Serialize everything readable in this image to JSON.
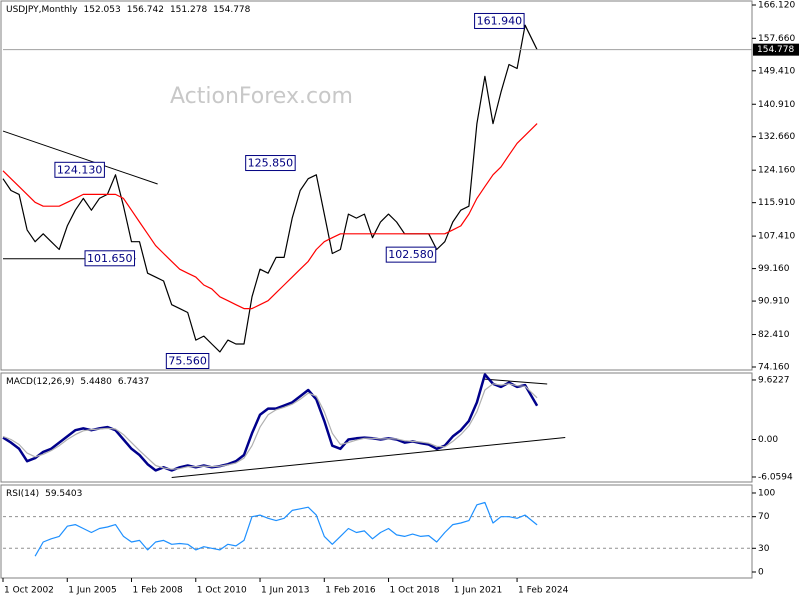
{
  "chart_data": [
    {
      "type": "line",
      "title": "USDJPY,Monthly",
      "ohlc": [
        152.053,
        156.742,
        151.278,
        154.778
      ],
      "watermark": "ActionForex.com",
      "xlim": [
        0,
        373
      ],
      "ylim": [
        73.4,
        167.14
      ],
      "yticks": [
        {
          "value": 166.12,
          "label": "166.120"
        },
        {
          "value": 157.66,
          "label": "157.660"
        },
        {
          "value": 149.41,
          "label": "149.410"
        },
        {
          "value": 140.91,
          "label": "140.910"
        },
        {
          "value": 132.66,
          "label": "132.660"
        },
        {
          "value": 124.16,
          "label": "124.160"
        },
        {
          "value": 115.91,
          "label": "115.910"
        },
        {
          "value": 107.41,
          "label": "107.410"
        },
        {
          "value": 99.16,
          "label": "99.160"
        },
        {
          "value": 90.91,
          "label": "90.910"
        },
        {
          "value": 82.41,
          "label": "82.410"
        },
        {
          "value": 74.16,
          "label": "74.160"
        }
      ],
      "x": [
        0,
        4,
        8,
        12,
        16,
        20,
        24,
        28,
        32,
        36,
        40,
        44,
        48,
        52,
        56,
        60,
        64,
        68,
        72,
        76,
        80,
        84,
        88,
        92,
        96,
        100,
        104,
        108,
        112,
        116,
        120,
        124,
        128,
        132,
        136,
        140,
        144,
        148,
        152,
        156,
        160,
        164,
        168,
        172,
        176,
        180,
        184,
        188,
        192,
        196,
        200,
        204,
        208,
        212,
        216,
        220,
        224,
        228,
        232,
        236,
        240,
        244,
        248,
        252,
        256,
        260,
        266
      ],
      "series": [
        {
          "color": "#000000",
          "values": [
            122,
            119,
            118,
            109,
            106,
            108,
            106,
            104,
            110,
            114,
            117,
            114,
            117,
            118,
            123,
            115,
            106,
            106,
            98,
            97,
            96,
            90,
            89,
            88,
            81,
            82,
            80,
            78,
            81,
            80,
            80,
            92,
            99,
            98,
            102,
            102,
            112,
            119,
            122,
            123,
            113,
            103,
            104,
            113,
            112,
            113,
            107,
            111,
            113,
            111,
            108,
            108,
            108,
            108,
            104,
            106,
            111,
            114,
            115,
            136,
            148,
            136,
            144,
            151,
            150,
            161,
            154.778
          ]
        },
        {
          "color": "#ff0000",
          "values": [
            124,
            122,
            120,
            118,
            116,
            115,
            115,
            115,
            116,
            117,
            118,
            118,
            118,
            118,
            118,
            117,
            114,
            111,
            108,
            105,
            103,
            101,
            99,
            98,
            97,
            95,
            94,
            92,
            91,
            90,
            89,
            89,
            90,
            91,
            93,
            95,
            97,
            99,
            101,
            104,
            106,
            107,
            108,
            108,
            108,
            108,
            108,
            108,
            108,
            108,
            108,
            108,
            108,
            108,
            108,
            108,
            109,
            110,
            113,
            117,
            120,
            123,
            125,
            128,
            131,
            133,
            136
          ]
        }
      ],
      "annotations": [
        {
          "x": 260,
          "value": 161.94,
          "label": "161.940"
        },
        {
          "x": 51,
          "value": 124.13,
          "label": "124.130"
        },
        {
          "x": 146,
          "value": 125.85,
          "label": "125.850"
        },
        {
          "x": 66,
          "value": 101.65,
          "label": "101.650"
        },
        {
          "x": 216,
          "value": 102.58,
          "label": "102.580"
        },
        {
          "x": 103,
          "value": 75.56,
          "label": "75.560"
        }
      ],
      "trendlines": [
        {
          "x": [
            0,
            77
          ],
          "y": [
            134.1,
            120.65
          ]
        },
        {
          "x": [
            0,
            66
          ],
          "y": [
            101.65,
            101.65
          ]
        }
      ]
    },
    {
      "type": "line",
      "title": "MACD(12,26,9)",
      "readout": [
        {
          "value": 5.448,
          "label": "5.4480"
        },
        6.7437
      ],
      "xlim": [
        0,
        373
      ],
      "ylim": [
        -6.87,
        10.75
      ],
      "yticks": [
        9.6227,
        {
          "value": 0,
          "label": "0.00"
        },
        -6.0594
      ],
      "x": [
        0,
        4,
        8,
        12,
        16,
        20,
        24,
        28,
        32,
        36,
        40,
        44,
        48,
        52,
        56,
        60,
        64,
        68,
        72,
        76,
        80,
        84,
        88,
        92,
        96,
        100,
        104,
        108,
        112,
        116,
        120,
        124,
        128,
        132,
        136,
        140,
        144,
        148,
        152,
        156,
        160,
        164,
        168,
        172,
        176,
        180,
        184,
        188,
        192,
        196,
        200,
        204,
        208,
        212,
        216,
        220,
        224,
        228,
        232,
        236,
        240,
        244,
        248,
        252,
        256,
        260,
        266
      ],
      "series": [
        {
          "color": "#00008b",
          "values": [
            0.3,
            -0.5,
            -1.5,
            -3.5,
            -3,
            -2,
            -1.5,
            -0.5,
            0.5,
            1.5,
            1.8,
            1.5,
            1.8,
            2,
            1.5,
            0,
            -1.5,
            -2.5,
            -4,
            -5,
            -4.5,
            -5,
            -4.5,
            -4.2,
            -4.5,
            -4.2,
            -4.5,
            -4.3,
            -4,
            -3.5,
            -2.5,
            1,
            4,
            5,
            5,
            5.5,
            6,
            7,
            8,
            6.5,
            3,
            -1,
            -1.5,
            0,
            0.2,
            0.3,
            0.2,
            0,
            0.2,
            0,
            -0.5,
            -0.3,
            -0.6,
            -0.8,
            -1.5,
            -1,
            0.5,
            1.5,
            3,
            6,
            10.5,
            9,
            8.5,
            9.2,
            8.5,
            8.8,
            5.448
          ]
        },
        {
          "color": "#b0b0b0",
          "values": [
            0.5,
            0,
            -0.8,
            -2.2,
            -2.8,
            -2.4,
            -1.8,
            -1,
            0,
            0.8,
            1.4,
            1.6,
            1.7,
            1.8,
            1.7,
            0.8,
            -0.5,
            -1.8,
            -3,
            -4.2,
            -4.6,
            -4.8,
            -4.7,
            -4.4,
            -4.4,
            -4.3,
            -4.4,
            -4.3,
            -4.1,
            -3.8,
            -3,
            -1,
            2,
            4,
            4.8,
            5.2,
            5.7,
            6.5,
            7.5,
            7,
            4.5,
            1,
            -0.8,
            -0.5,
            -0.1,
            0.2,
            0.2,
            0.1,
            0.1,
            0.1,
            -0.2,
            -0.3,
            -0.4,
            -0.6,
            -1.1,
            -1.2,
            -0.3,
            0.8,
            2.2,
            4.5,
            8,
            9,
            8.8,
            9,
            8.7,
            8.6,
            6.7437
          ]
        }
      ],
      "trendlines": [
        {
          "x": [
            84,
            280
          ],
          "y": [
            -6.14,
            0.32
          ]
        },
        {
          "x": [
            239,
            271
          ],
          "y": [
            9.78,
            8.97
          ]
        }
      ]
    },
    {
      "type": "line",
      "title": "RSI(14)",
      "readout": [
        59.5403
      ],
      "xlim": [
        0,
        373
      ],
      "ylim": [
        -7.6,
        110.1
      ],
      "yticks": [
        100,
        70,
        30,
        0
      ],
      "levels": [
        70,
        30
      ],
      "xticks": [
        {
          "value": 0,
          "label": "1 Oct 2002"
        },
        {
          "value": 32,
          "label": "1 Jun 2005"
        },
        {
          "value": 64,
          "label": "1 Feb 2008"
        },
        {
          "value": 96,
          "label": "1 Oct 2010"
        },
        {
          "value": 128,
          "label": "1 Jun 2013"
        },
        {
          "value": 160,
          "label": "1 Feb 2016"
        },
        {
          "value": 192,
          "label": "1 Oct 2018"
        },
        {
          "value": 224,
          "label": "1 Jun 2021"
        },
        {
          "value": 256,
          "label": "1 Feb 2024"
        }
      ],
      "x": [
        0,
        4,
        8,
        12,
        16,
        20,
        24,
        28,
        32,
        36,
        40,
        44,
        48,
        52,
        56,
        60,
        64,
        68,
        72,
        76,
        80,
        84,
        88,
        92,
        96,
        100,
        104,
        108,
        112,
        116,
        120,
        124,
        128,
        132,
        136,
        140,
        144,
        148,
        152,
        156,
        160,
        164,
        168,
        172,
        176,
        180,
        184,
        188,
        192,
        196,
        200,
        204,
        208,
        212,
        216,
        220,
        224,
        228,
        232,
        236,
        240,
        244,
        248,
        252,
        256,
        260,
        266
      ],
      "series": [
        {
          "color": "#1e90ff",
          "values": [
            null,
            null,
            null,
            null,
            20,
            38,
            42,
            45,
            58,
            60,
            55,
            50,
            55,
            57,
            60,
            45,
            38,
            40,
            28,
            38,
            40,
            35,
            36,
            35,
            28,
            32,
            30,
            28,
            35,
            33,
            40,
            70,
            72,
            68,
            65,
            68,
            78,
            80,
            82,
            72,
            45,
            35,
            45,
            55,
            50,
            52,
            42,
            50,
            55,
            47,
            45,
            48,
            45,
            46,
            38,
            50,
            60,
            62,
            65,
            85,
            88,
            62,
            70,
            70,
            68,
            72,
            59.5403
          ]
        }
      ]
    }
  ]
}
